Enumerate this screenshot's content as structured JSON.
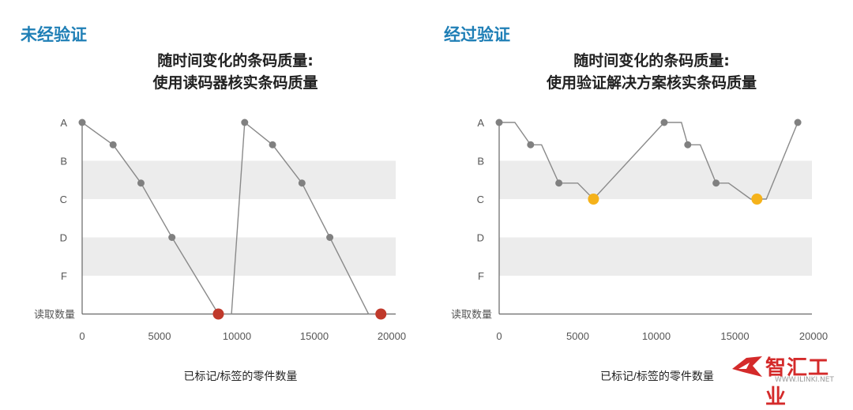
{
  "chart_data": [
    {
      "type": "line",
      "heading": "未经验证",
      "title": [
        "随时间变化的条码质量:",
        "使用读码器核实条码质量"
      ],
      "xlabel": "已标记/标签的零件数量",
      "xticks": [
        0,
        5000,
        10000,
        15000,
        20000
      ],
      "xlim": [
        0,
        20000
      ],
      "ycategories": [
        "A",
        "B",
        "C",
        "D",
        "F",
        "读取数量"
      ],
      "shaded_bands": [
        "B",
        "D"
      ],
      "grid": false,
      "series": [
        {
          "x": [
            0,
            2000,
            3800,
            5800,
            8800,
            9650,
            10500,
            12300,
            14200,
            16000,
            18500,
            19300
          ],
          "y": [
            "A",
            "A-B",
            "B-C",
            "D",
            "读取数量",
            "读取数量",
            "A",
            "A-B",
            "B-C",
            "D",
            "读取数量",
            "读取数量"
          ],
          "markers": [
            {
              "x": 0,
              "y": "A",
              "color": "#808080"
            },
            {
              "x": 2000,
              "y": "A-B",
              "color": "#808080"
            },
            {
              "x": 3800,
              "y": "B-C",
              "color": "#808080"
            },
            {
              "x": 5800,
              "y": "D",
              "color": "#808080"
            },
            {
              "x": 8800,
              "y": "读取数量",
              "color": "#c0392b"
            },
            {
              "x": 10500,
              "y": "A",
              "color": "#808080"
            },
            {
              "x": 12300,
              "y": "A-B",
              "color": "#808080"
            },
            {
              "x": 14200,
              "y": "B-C",
              "color": "#808080"
            },
            {
              "x": 16000,
              "y": "D",
              "color": "#808080"
            },
            {
              "x": 19300,
              "y": "读取数量",
              "color": "#c0392b"
            }
          ]
        }
      ]
    },
    {
      "type": "line",
      "heading": "经过验证",
      "title": [
        "随时间变化的条码质量:",
        "使用验证解决方案核实条码质量"
      ],
      "xlabel": "已标记/标签的零件数量",
      "xticks": [
        0,
        5000,
        10000,
        15000,
        20000
      ],
      "xlim": [
        0,
        20000
      ],
      "ycategories": [
        "A",
        "B",
        "C",
        "D",
        "F",
        "读取数量"
      ],
      "shaded_bands": [
        "B",
        "D"
      ],
      "grid": false,
      "series": [
        {
          "x": [
            0,
            1000,
            2000,
            2700,
            3800,
            5000,
            6000,
            10500,
            11600,
            12000,
            12800,
            13800,
            14600,
            16000,
            17000,
            19000
          ],
          "y": [
            "A",
            "A",
            "A-B",
            "A-B",
            "B-C",
            "B-C",
            "C",
            "A",
            "A",
            "A-B",
            "A-B",
            "B-C",
            "B-C",
            "C",
            "C",
            "A"
          ],
          "markers": [
            {
              "x": 0,
              "y": "A",
              "color": "#808080"
            },
            {
              "x": 2000,
              "y": "A-B",
              "color": "#808080"
            },
            {
              "x": 3800,
              "y": "B-C",
              "color": "#808080"
            },
            {
              "x": 6000,
              "y": "C",
              "color": "#f5b21a"
            },
            {
              "x": 10500,
              "y": "A",
              "color": "#808080"
            },
            {
              "x": 12000,
              "y": "A-B",
              "color": "#808080"
            },
            {
              "x": 13800,
              "y": "B-C",
              "color": "#808080"
            },
            {
              "x": 16400,
              "y": "C",
              "color": "#f5b21a"
            },
            {
              "x": 19000,
              "y": "A",
              "color": "#808080"
            }
          ]
        }
      ]
    }
  ],
  "watermark": {
    "text": "智汇工业",
    "url": "WWW.ILINKI.NET"
  },
  "colors": {
    "heading": "#1f7fb6",
    "band": "#ececec",
    "line": "#8a8a8a",
    "axis": "#666666"
  }
}
